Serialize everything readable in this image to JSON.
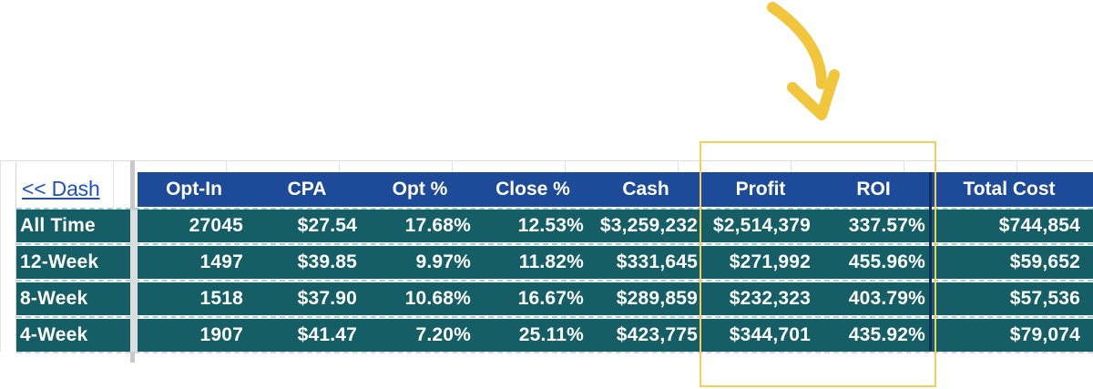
{
  "nav": {
    "dash_link": "<< Dash"
  },
  "table": {
    "columns": [
      "Opt-In",
      "CPA",
      "Opt %",
      "Close %",
      "Cash",
      "Profit",
      "ROI",
      "Total Cost"
    ],
    "rows": [
      {
        "label": "All Time",
        "values": [
          "27045",
          "$27.54",
          "17.68%",
          "12.53%",
          "$3,259,232",
          "$2,514,379",
          "337.57%",
          "$744,854"
        ]
      },
      {
        "label": "12-Week",
        "values": [
          "1497",
          "$39.85",
          "9.97%",
          "11.82%",
          "$331,645",
          "$271,992",
          "455.96%",
          "$59,652"
        ]
      },
      {
        "label": "8-Week",
        "values": [
          "1518",
          "$37.90",
          "10.68%",
          "16.67%",
          "$289,859",
          "$232,323",
          "403.79%",
          "$57,536"
        ]
      },
      {
        "label": "4-Week",
        "values": [
          "1907",
          "$41.47",
          "7.20%",
          "25.11%",
          "$423,775",
          "$344,701",
          "435.92%",
          "$79,074"
        ]
      }
    ]
  },
  "colors": {
    "header_bg": "#1e4a9a",
    "row_bg": "#155e66",
    "highlight": "#f3cf5a",
    "arrow": "#f1c53c",
    "link": "#1f4fc8"
  },
  "annotations": {
    "highlight_target": "Profit, ROI",
    "arrow_icon": "curved-arrow-down-icon"
  }
}
